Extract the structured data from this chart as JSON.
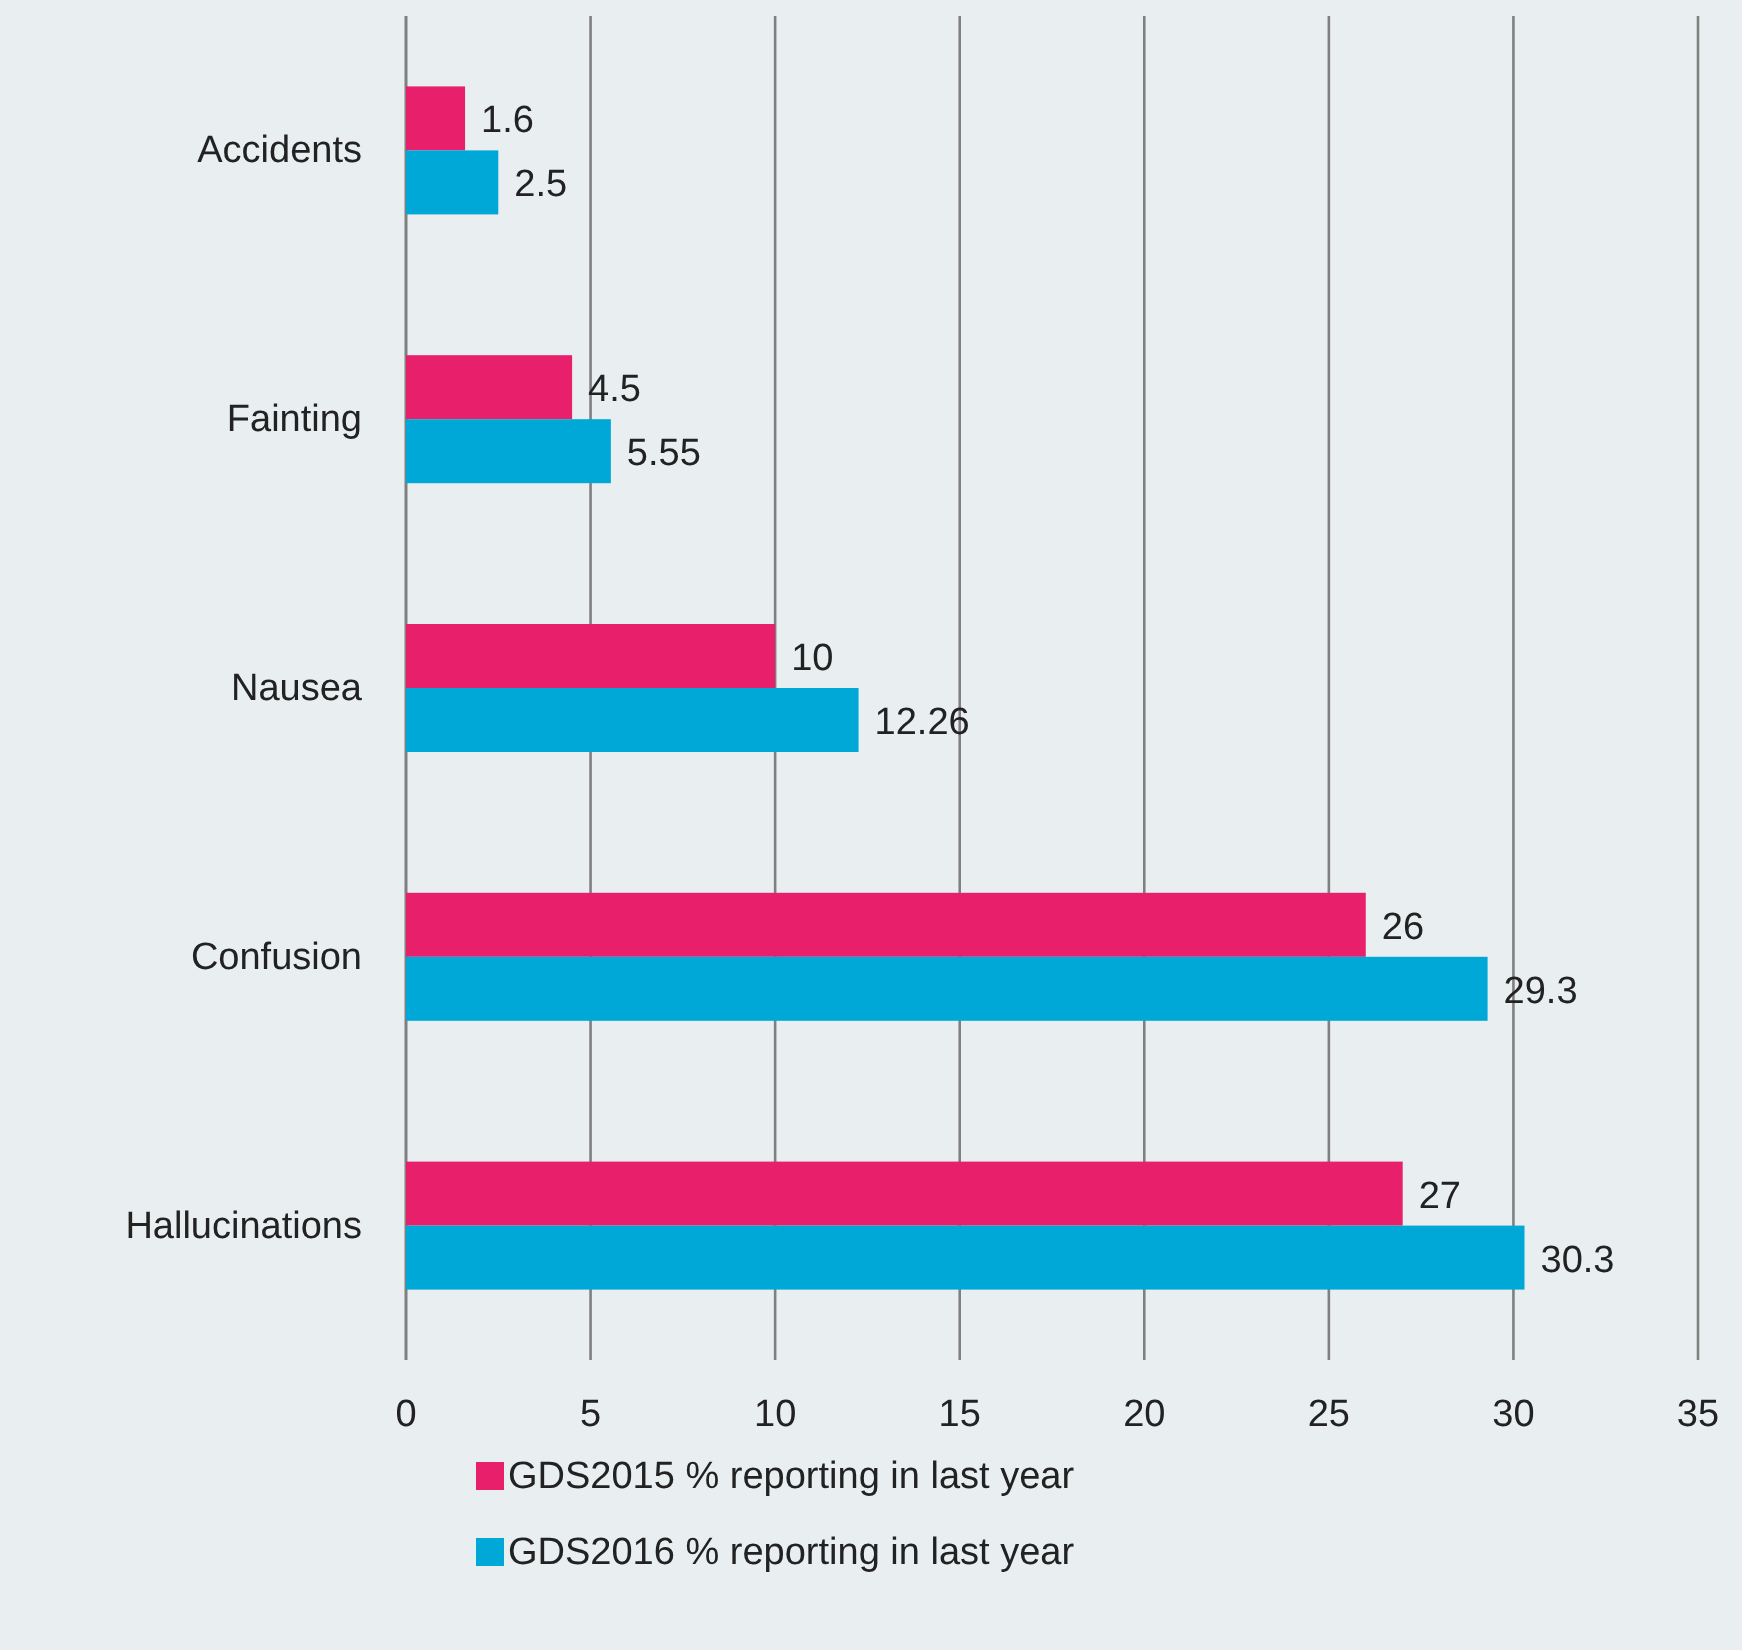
{
  "chart_data": {
    "type": "bar",
    "orientation": "horizontal",
    "categories": [
      "Accidents",
      "Fainting",
      "Nausea",
      "Confusion",
      "Hallucinations"
    ],
    "series": [
      {
        "name": "GDS2015 % reporting in last year",
        "color": "#e8206b",
        "values": [
          1.6,
          4.5,
          10,
          26,
          27
        ]
      },
      {
        "name": "GDS2016 % reporting in last year",
        "color": "#00a8d8",
        "values": [
          2.5,
          5.55,
          12.26,
          29.3,
          30.3
        ]
      }
    ],
    "xlim": [
      0,
      35
    ],
    "xticks": [
      0,
      5,
      10,
      15,
      20,
      25,
      30,
      35
    ],
    "grid": "x",
    "data_labels": true,
    "legend": "bottom"
  }
}
